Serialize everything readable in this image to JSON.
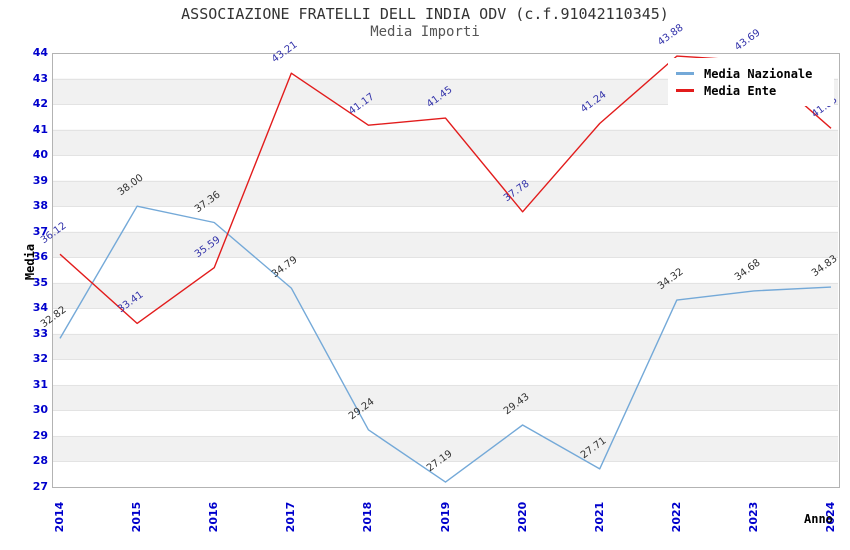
{
  "chart_data": {
    "type": "line",
    "title": "ASSOCIAZIONE FRATELLI DELL INDIA ODV (c.f.91042110345)",
    "subtitle": "Media Importi",
    "xlabel": "Anno",
    "ylabel": "Media",
    "categories": [
      "2014",
      "2015",
      "2016",
      "2017",
      "2018",
      "2019",
      "2020",
      "2021",
      "2022",
      "2023",
      "2024"
    ],
    "series": [
      {
        "name": "Media Nazionale",
        "color": "#74a9d8",
        "label_color": "#333333",
        "values": [
          32.82,
          38.0,
          37.36,
          34.79,
          29.24,
          27.19,
          29.43,
          27.71,
          34.32,
          34.68,
          34.83
        ]
      },
      {
        "name": "Media Ente",
        "color": "#e21c1c",
        "label_color": "#3333aa",
        "values": [
          36.12,
          33.41,
          35.59,
          43.21,
          41.17,
          41.45,
          37.78,
          41.24,
          43.88,
          43.69,
          41.05
        ]
      }
    ],
    "ylim": [
      27,
      44
    ],
    "yticks": [
      27,
      28,
      29,
      30,
      31,
      32,
      33,
      34,
      35,
      36,
      37,
      38,
      39,
      40,
      41,
      42,
      43,
      44
    ],
    "grid": true,
    "band_color": "#f1f1f1",
    "grid_color": "#e3e3e3",
    "border_color": "#b3b3b3",
    "tick_color": "#0000cc",
    "legend_position": "top-right"
  }
}
